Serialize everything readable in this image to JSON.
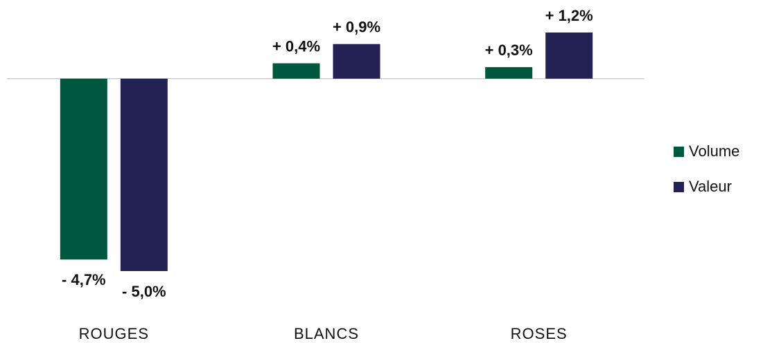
{
  "chart_data": {
    "type": "bar",
    "categories": [
      "ROUGES",
      "BLANCS",
      "ROSES"
    ],
    "series": [
      {
        "name": "Volume",
        "color": "#00573f",
        "values": [
          -4.7,
          0.4,
          0.3
        ],
        "value_labels": [
          "- 4,7%",
          "+ 0,4%",
          "+ 0,3%"
        ]
      },
      {
        "name": "Valeur",
        "color": "#232255",
        "values": [
          -5.0,
          0.9,
          1.2
        ],
        "value_labels": [
          "- 5,0%",
          "+ 0,9%",
          "+ 1,2%"
        ]
      }
    ],
    "legend": "right"
  }
}
